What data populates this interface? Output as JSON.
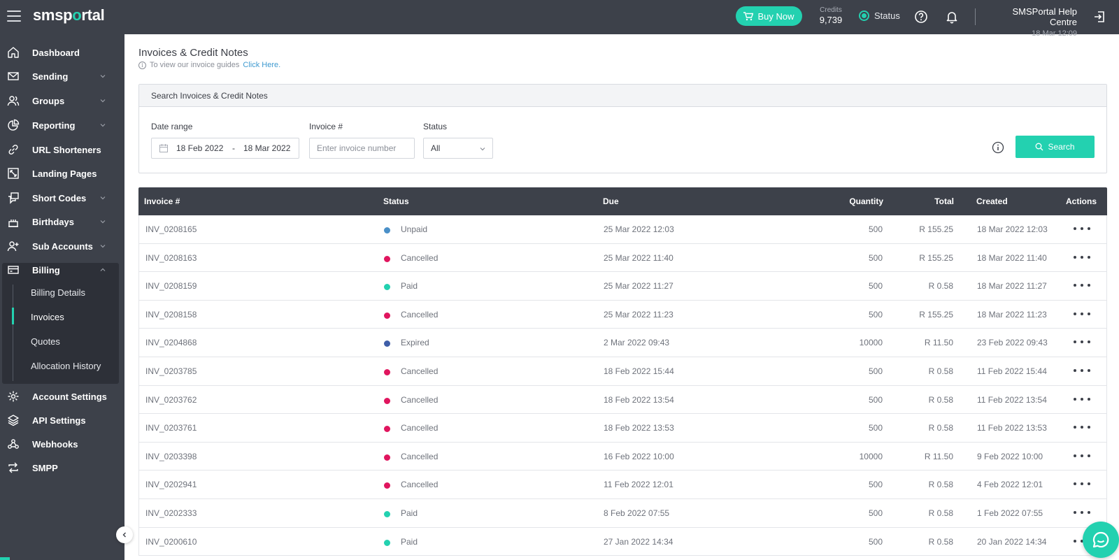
{
  "app": {
    "logo_pre": "smsp",
    "logo_o": "o",
    "logo_post": "rtal"
  },
  "topbar": {
    "buy_now": "Buy Now",
    "credits_label": "Credits",
    "credits_value": "9,739",
    "status_label": "Status",
    "user_name": "SMSPortal Help Centre",
    "user_time": "18 Mar 12:09"
  },
  "sidebar": {
    "items": [
      {
        "label": "Dashboard"
      },
      {
        "label": "Sending"
      },
      {
        "label": "Groups"
      },
      {
        "label": "Reporting"
      },
      {
        "label": "URL Shorteners"
      },
      {
        "label": "Landing Pages"
      },
      {
        "label": "Short Codes"
      },
      {
        "label": "Birthdays"
      },
      {
        "label": "Sub Accounts"
      },
      {
        "label": "Billing"
      },
      {
        "label": "Account Settings"
      },
      {
        "label": "API Settings"
      },
      {
        "label": "Webhooks"
      },
      {
        "label": "SMPP"
      }
    ],
    "billing_sub": [
      {
        "label": "Billing Details"
      },
      {
        "label": "Invoices"
      },
      {
        "label": "Quotes"
      },
      {
        "label": "Allocation History"
      }
    ]
  },
  "page": {
    "title": "Invoices & Credit Notes",
    "guide_text": "To view our invoice guides",
    "guide_link": "Click Here."
  },
  "search": {
    "header": "Search Invoices & Credit Notes",
    "date_label": "Date range",
    "date_from": "18 Feb 2022",
    "date_sep": "-",
    "date_to": "18 Mar 2022",
    "invoice_label": "Invoice #",
    "invoice_placeholder": "Enter invoice number",
    "status_label": "Status",
    "status_value": "All",
    "search_button": "Search"
  },
  "table": {
    "headers": {
      "invoice": "Invoice #",
      "status": "Status",
      "due": "Due",
      "quantity": "Quantity",
      "total": "Total",
      "created": "Created",
      "actions": "Actions"
    },
    "rows": [
      {
        "invoice": "INV_0208165",
        "status": "Unpaid",
        "due": "25 Mar 2022 12:03",
        "quantity": "500",
        "total": "R 155.25",
        "created": "18 Mar 2022 12:03"
      },
      {
        "invoice": "INV_0208163",
        "status": "Cancelled",
        "due": "25 Mar 2022 11:40",
        "quantity": "500",
        "total": "R 155.25",
        "created": "18 Mar 2022 11:40"
      },
      {
        "invoice": "INV_0208159",
        "status": "Paid",
        "due": "25 Mar 2022 11:27",
        "quantity": "500",
        "total": "R 0.58",
        "created": "18 Mar 2022 11:27"
      },
      {
        "invoice": "INV_0208158",
        "status": "Cancelled",
        "due": "25 Mar 2022 11:23",
        "quantity": "500",
        "total": "R 155.25",
        "created": "18 Mar 2022 11:23"
      },
      {
        "invoice": "INV_0204868",
        "status": "Expired",
        "due": "2 Mar 2022 09:43",
        "quantity": "10000",
        "total": "R 11.50",
        "created": "23 Feb 2022 09:43"
      },
      {
        "invoice": "INV_0203785",
        "status": "Cancelled",
        "due": "18 Feb 2022 15:44",
        "quantity": "500",
        "total": "R 0.58",
        "created": "11 Feb 2022 15:44"
      },
      {
        "invoice": "INV_0203762",
        "status": "Cancelled",
        "due": "18 Feb 2022 13:54",
        "quantity": "500",
        "total": "R 0.58",
        "created": "11 Feb 2022 13:54"
      },
      {
        "invoice": "INV_0203761",
        "status": "Cancelled",
        "due": "18 Feb 2022 13:53",
        "quantity": "500",
        "total": "R 0.58",
        "created": "11 Feb 2022 13:53"
      },
      {
        "invoice": "INV_0203398",
        "status": "Cancelled",
        "due": "16 Feb 2022 10:00",
        "quantity": "10000",
        "total": "R 11.50",
        "created": "9 Feb 2022 10:00"
      },
      {
        "invoice": "INV_0202941",
        "status": "Cancelled",
        "due": "11 Feb 2022 12:01",
        "quantity": "500",
        "total": "R 0.58",
        "created": "4 Feb 2022 12:01"
      },
      {
        "invoice": "INV_0202333",
        "status": "Paid",
        "due": "8 Feb 2022 07:55",
        "quantity": "500",
        "total": "R 0.58",
        "created": "1 Feb 2022 07:55"
      },
      {
        "invoice": "INV_0200610",
        "status": "Paid",
        "due": "27 Jan 2022 14:34",
        "quantity": "500",
        "total": "R 0.58",
        "created": "20 Jan 2022 14:34"
      }
    ]
  },
  "colors": {
    "accent": "#23d1b0",
    "sidebar_bg": "#3d414a",
    "status_unpaid": "#4a90c8",
    "status_cancelled": "#e0155e",
    "status_paid": "#23d1b0",
    "status_expired": "#3f5ea8"
  }
}
